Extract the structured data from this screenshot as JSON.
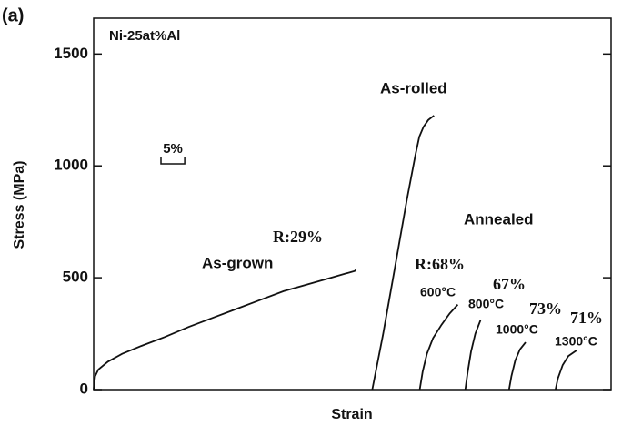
{
  "chart_data": {
    "type": "line",
    "panel_label": "(a)",
    "ylabel": "Stress (MPa)",
    "xlabel": "Strain",
    "ylim": [
      0,
      1660
    ],
    "yticks": [
      0,
      500,
      1000,
      1500
    ],
    "xlim": [
      0,
      109
    ],
    "color": "#111111",
    "scale_bar": {
      "label": "5%",
      "length": 5
    },
    "annotations": [
      "Ni-25at%Al",
      "As-rolled",
      "Annealed",
      "R:29%",
      "As-grown",
      "R:68%",
      "600°C",
      "67%",
      "800°C",
      "73%",
      "1000°C",
      "71%",
      "1300°C"
    ],
    "series": [
      {
        "x": [
          0,
          0.3,
          1,
          3,
          6,
          10,
          15,
          20,
          25,
          30,
          35,
          40,
          45,
          50,
          55,
          55.2
        ],
        "values": [
          0,
          60,
          90,
          125,
          160,
          195,
          235,
          280,
          320,
          360,
          400,
          440,
          470,
          500,
          530,
          535
        ]
      },
      {
        "x": [
          58.7,
          61,
          63.5,
          66,
          67.8,
          68.6,
          69.5,
          70.5,
          71.7
        ],
        "values": [
          0,
          250,
          550,
          850,
          1050,
          1130,
          1175,
          1205,
          1225
        ]
      },
      {
        "x": [
          68.7,
          69.3,
          70.2,
          71.5,
          73.3,
          75,
          76.7
        ],
        "values": [
          0,
          80,
          160,
          230,
          290,
          340,
          380
        ]
      },
      {
        "x": [
          78.3,
          78.8,
          79.5,
          80.4,
          81.5
        ],
        "values": [
          0,
          80,
          170,
          250,
          310
        ]
      },
      {
        "x": [
          87.5,
          88,
          88.8,
          89.8,
          91
        ],
        "values": [
          0,
          60,
          130,
          180,
          211
        ]
      },
      {
        "x": [
          97.3,
          97.8,
          98.8,
          100,
          101.7
        ],
        "values": [
          0,
          50,
          110,
          150,
          175
        ]
      }
    ]
  }
}
